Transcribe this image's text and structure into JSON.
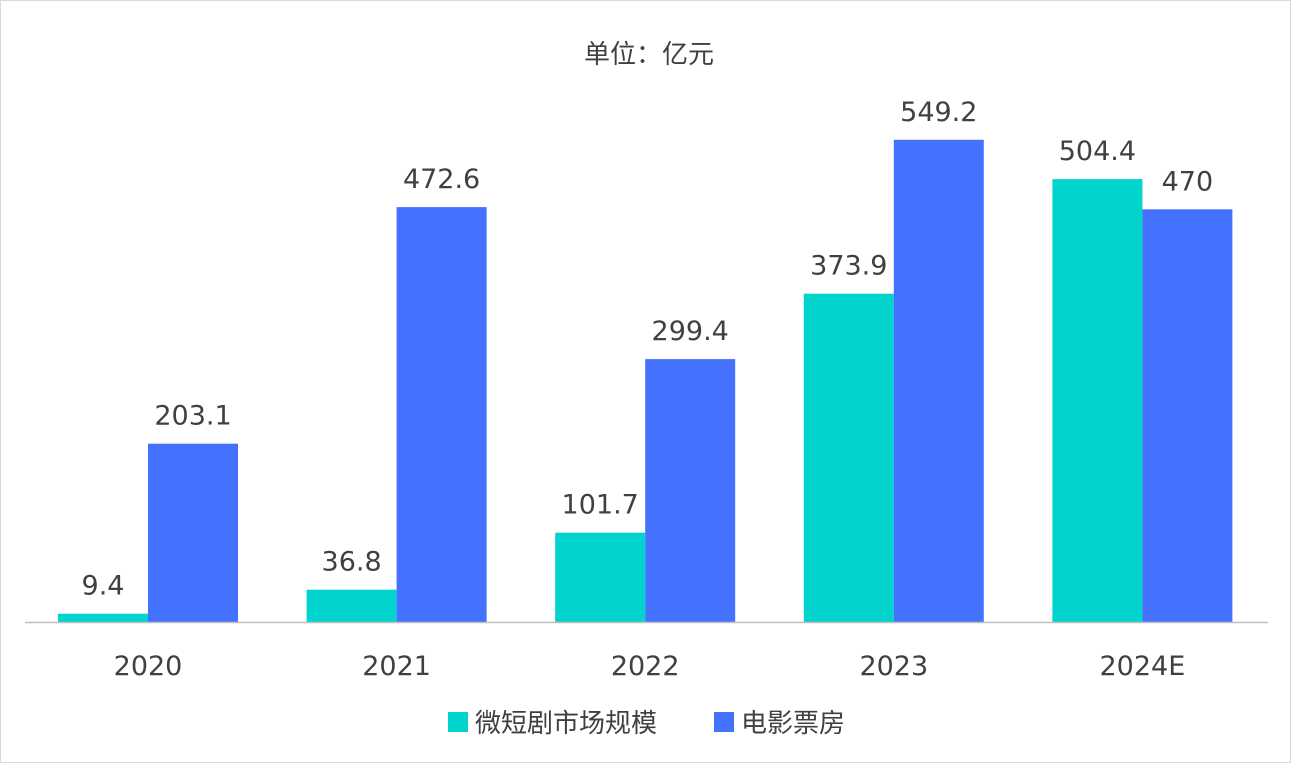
{
  "chart_data": {
    "type": "bar",
    "title": "单位：亿元",
    "categories": [
      "2020",
      "2021",
      "2022",
      "2023",
      "2024E"
    ],
    "series": [
      {
        "name": "微短剧市场规模",
        "values": [
          9.4,
          36.8,
          101.7,
          373.9,
          504.4
        ],
        "color": "#00D4CC"
      },
      {
        "name": "电影票房",
        "values": [
          203.1,
          472.6,
          299.4,
          549.2,
          470
        ],
        "color": "#4472FF"
      }
    ],
    "value_labels": [
      [
        "9.4",
        "36.8",
        "101.7",
        "373.9",
        "504.4"
      ],
      [
        "203.1",
        "472.6",
        "299.4",
        "549.2",
        "470"
      ]
    ],
    "ylim": [
      0,
      600
    ],
    "grid": false,
    "legend_position": "bottom",
    "axis_color": "#bfbfbf"
  }
}
